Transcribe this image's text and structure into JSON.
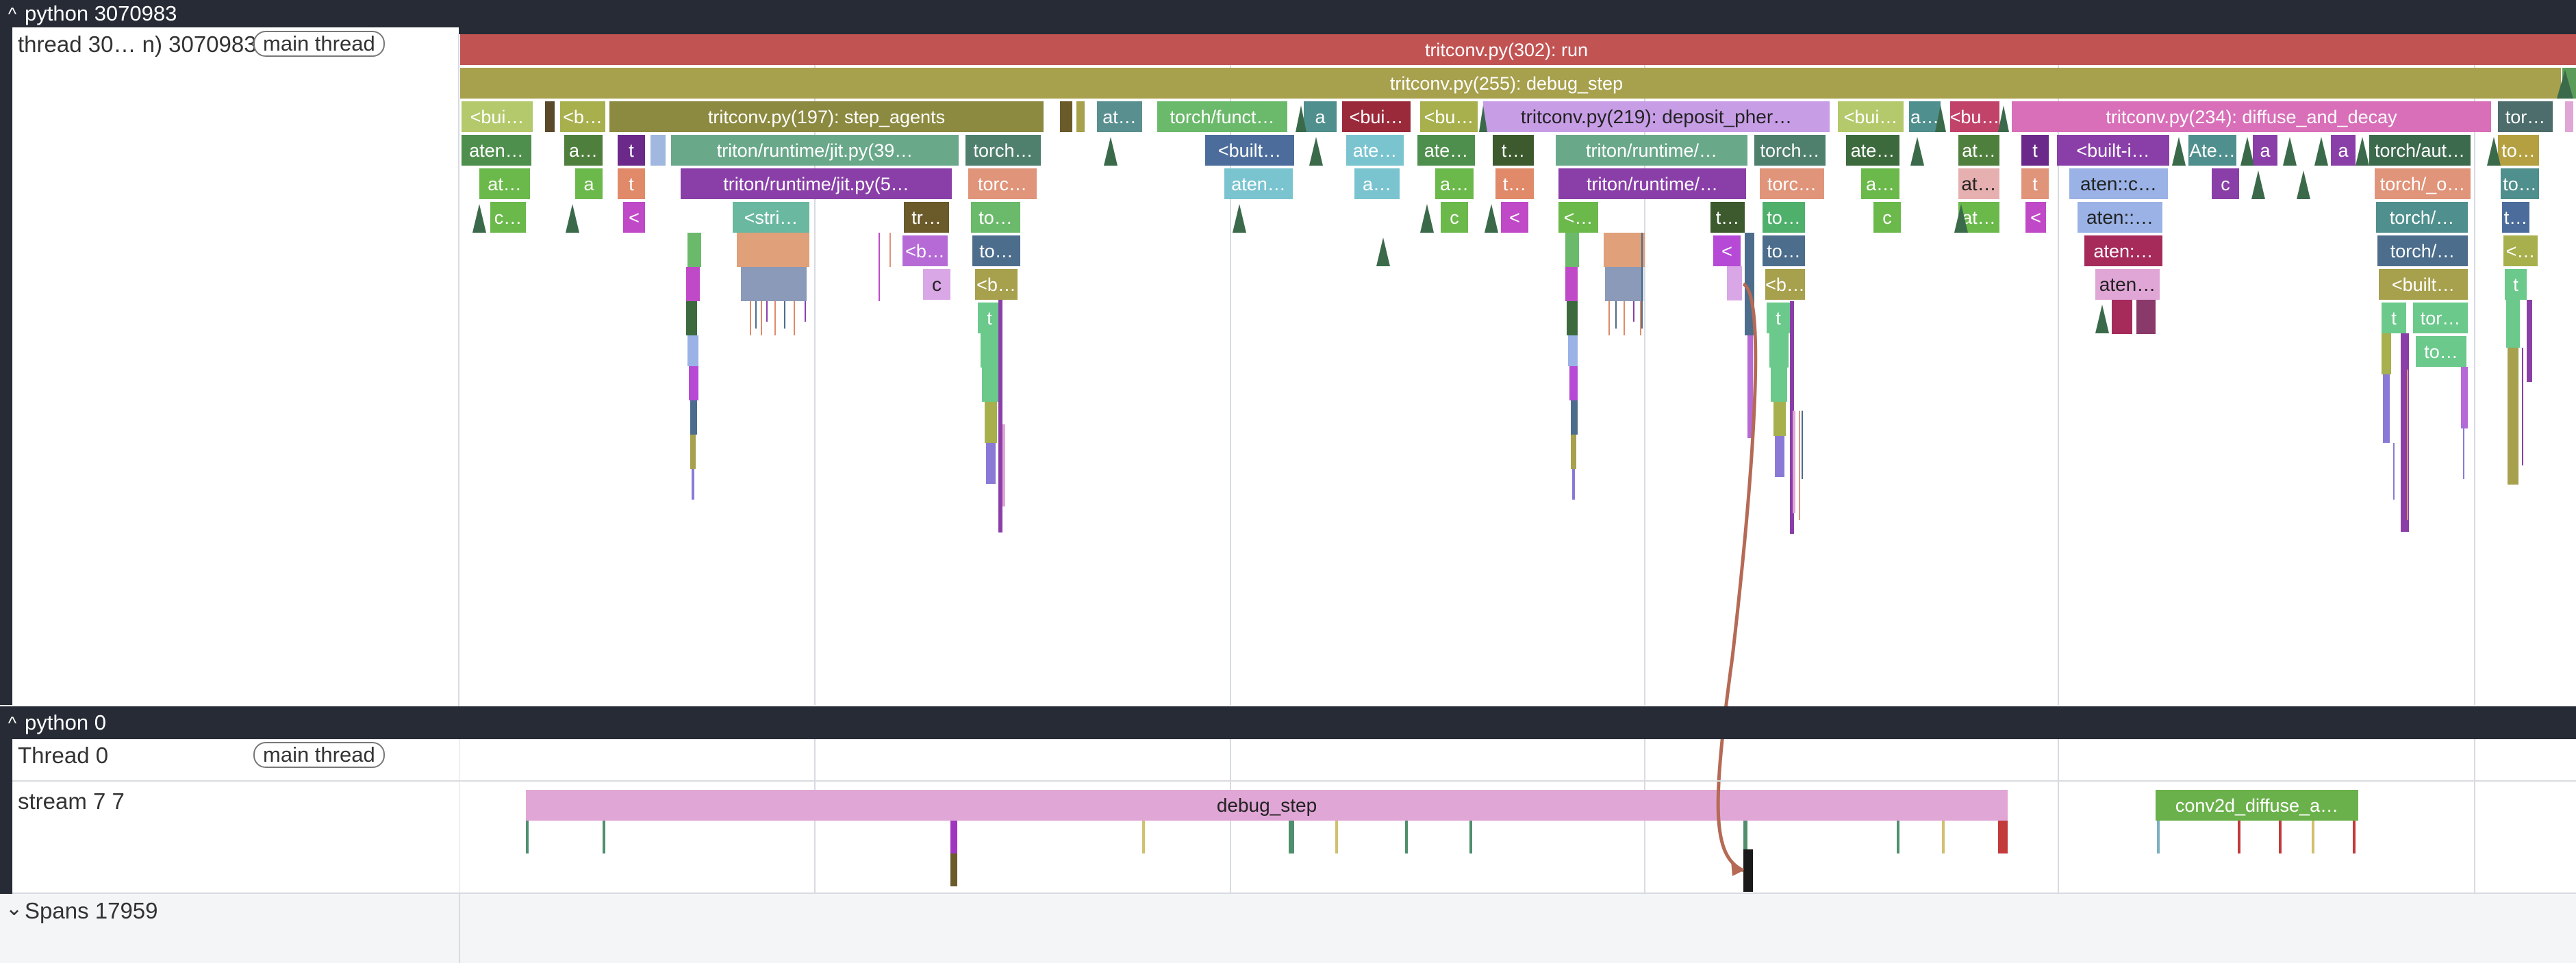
{
  "process_top": {
    "title": "python 3070983",
    "chevron": "^"
  },
  "main_thread_row": {
    "name": "thread 30… n) 3070983",
    "badge": "main thread"
  },
  "process_bottom": {
    "title": "python 0",
    "chevron": "^"
  },
  "thread0_row": {
    "name": "Thread 0",
    "badge": "main thread"
  },
  "stream_row": {
    "name": "stream 7 7"
  },
  "spans_row": {
    "title": "Spans 17959",
    "chevron": "⌄"
  },
  "colors": {
    "run": "#c25353",
    "debug_step": "#a7a04c",
    "lavender": "#c79de6",
    "pink": "#e0a6d6",
    "teal": "#4f8f8d",
    "green": "#6bb96b",
    "purple": "#8a3fa8",
    "blue": "#4c6d8c",
    "flow": "#b56a55"
  },
  "flame": {
    "row1": [
      {
        "text": "tritconv.py(302): run"
      }
    ],
    "row2": [
      {
        "text": "tritconv.py(255): debug_step"
      }
    ],
    "row3": [
      {
        "text": "<bui…"
      },
      {
        "text": "<b…"
      },
      {
        "text": "tritconv.py(197): step_agents"
      },
      {
        "text": "at…"
      },
      {
        "text": "torch/funct…"
      },
      {
        "text": "a"
      },
      {
        "text": "<bui…"
      },
      {
        "text": "<bu…"
      },
      {
        "text": "tritconv.py(219): deposit_pher…"
      },
      {
        "text": "<bui…"
      },
      {
        "text": "a…"
      },
      {
        "text": "<bu…"
      },
      {
        "text": "tritconv.py(234): diffuse_and_decay"
      },
      {
        "text": "tor…"
      }
    ],
    "row4": [
      {
        "text": "aten…"
      },
      {
        "text": "a…"
      },
      {
        "text": "t"
      },
      {
        "text": "triton/runtime/jit.py(39…"
      },
      {
        "text": "torch…"
      },
      {
        "text": "<built…"
      },
      {
        "text": "ate…"
      },
      {
        "text": "ate…"
      },
      {
        "text": "t…"
      },
      {
        "text": "triton/runtime/…"
      },
      {
        "text": "torch…"
      },
      {
        "text": "ate…"
      },
      {
        "text": "at…"
      },
      {
        "text": "t"
      },
      {
        "text": "<built-i…"
      },
      {
        "text": "Ate…"
      },
      {
        "text": "a"
      },
      {
        "text": "a"
      },
      {
        "text": "torch/aut…"
      },
      {
        "text": "to…"
      }
    ],
    "row5": [
      {
        "text": "at…"
      },
      {
        "text": "a"
      },
      {
        "text": "t"
      },
      {
        "text": "triton/runtime/jit.py(5…"
      },
      {
        "text": "torc…"
      },
      {
        "text": "aten…"
      },
      {
        "text": "a…"
      },
      {
        "text": "a…"
      },
      {
        "text": "t…"
      },
      {
        "text": "triton/runtime/…"
      },
      {
        "text": "torc…"
      },
      {
        "text": "a…"
      },
      {
        "text": "at…"
      },
      {
        "text": "t"
      },
      {
        "text": "aten::c…"
      },
      {
        "text": "c"
      },
      {
        "text": "torch/_o…"
      },
      {
        "text": "to…"
      }
    ],
    "row6": [
      {
        "text": "c…"
      },
      {
        "text": "<"
      },
      {
        "text": "<stri…"
      },
      {
        "text": "tr…"
      },
      {
        "text": "to…"
      },
      {
        "text": "c"
      },
      {
        "text": "<"
      },
      {
        "text": "<…"
      },
      {
        "text": "t…"
      },
      {
        "text": "to…"
      },
      {
        "text": "c"
      },
      {
        "text": "at…"
      },
      {
        "text": "<"
      },
      {
        "text": "aten::…"
      },
      {
        "text": "torch/…"
      },
      {
        "text": "t…"
      }
    ],
    "row7": [
      {
        "text": "<b…"
      },
      {
        "text": "to…"
      },
      {
        "text": "<"
      },
      {
        "text": "to…"
      },
      {
        "text": "aten:…"
      },
      {
        "text": "torch/…"
      },
      {
        "text": "<…"
      }
    ],
    "row8": [
      {
        "text": "c"
      },
      {
        "text": "<b…"
      },
      {
        "text": "<b…"
      },
      {
        "text": "aten…"
      },
      {
        "text": "<built…"
      },
      {
        "text": "t"
      }
    ],
    "row9": [
      {
        "text": "t"
      },
      {
        "text": "t"
      },
      {
        "text": "t"
      },
      {
        "text": "tor…"
      }
    ],
    "row10": [
      {
        "text": "to…"
      }
    ]
  },
  "gpu": {
    "debug_step_label": "debug_step",
    "conv_label": "conv2d_diffuse_a…"
  }
}
